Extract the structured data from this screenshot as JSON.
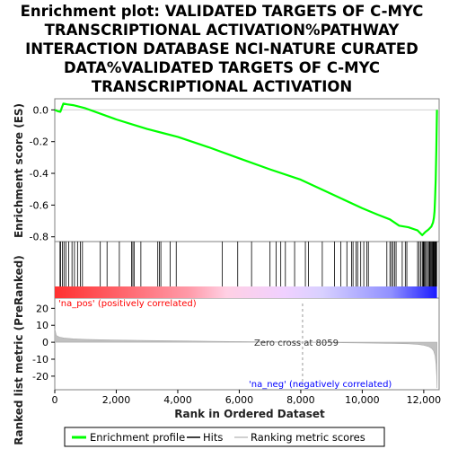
{
  "chart_data": {
    "type": "line",
    "title_lines": [
      "Enrichment plot: VALIDATED TARGETS OF C-MYC",
      "TRANSCRIPTIONAL ACTIVATION%PATHWAY",
      "INTERACTION DATABASE NCI-NATURE CURATED",
      "DATA%VALIDATED TARGETS OF C-MYC",
      "TRANSCRIPTIONAL ACTIVATION"
    ],
    "ylabel_top": "Enrichment score (ES)",
    "ylabel_bottom": "Ranked list metric (PreRanked)",
    "xlabel": "Rank in Ordered Dataset",
    "xlim": [
      0,
      12500
    ],
    "es_ylim": [
      -0.83,
      0.07
    ],
    "metric_ylim": [
      -28,
      26
    ],
    "x_ticks": [
      0,
      2000,
      4000,
      6000,
      8000,
      10000,
      12000
    ],
    "x_tick_labels": [
      "0",
      "2,000",
      "4,000",
      "6,000",
      "8,000",
      "10,000",
      "12,000"
    ],
    "es_ticks": [
      0.0,
      -0.2,
      -0.4,
      -0.6,
      -0.8
    ],
    "es_tick_labels": [
      "0.0",
      "-0.2",
      "-0.4",
      "-0.6",
      "-0.8"
    ],
    "metric_ticks": [
      20,
      10,
      0,
      -10,
      -20
    ],
    "metric_tick_labels": [
      "20",
      "10",
      "0",
      "-10",
      "-20"
    ],
    "enrichment_profile": {
      "x": [
        0,
        60,
        120,
        180,
        230,
        280,
        400,
        600,
        800,
        1000,
        1500,
        2000,
        2500,
        3000,
        3500,
        4000,
        5000,
        6000,
        7000,
        8000,
        9000,
        10000,
        10500,
        10900,
        11200,
        11500,
        11800,
        11950,
        12050,
        12150,
        12250,
        12300,
        12330,
        12350,
        12370,
        12390,
        12410,
        12430
      ],
      "y": [
        0.0,
        -0.005,
        -0.01,
        -0.012,
        0.015,
        0.04,
        0.035,
        0.03,
        0.02,
        0.01,
        -0.025,
        -0.06,
        -0.09,
        -0.12,
        -0.145,
        -0.17,
        -0.235,
        -0.305,
        -0.375,
        -0.44,
        -0.53,
        -0.62,
        -0.66,
        -0.69,
        -0.73,
        -0.74,
        -0.76,
        -0.79,
        -0.77,
        -0.755,
        -0.735,
        -0.71,
        -0.68,
        -0.64,
        -0.56,
        -0.44,
        -0.25,
        0.0
      ]
    },
    "hits": [
      170,
      190,
      250,
      300,
      360,
      450,
      560,
      640,
      740,
      830,
      900,
      1480,
      1700,
      2100,
      2500,
      2540,
      2580,
      2800,
      3350,
      3400,
      3450,
      3750,
      3950,
      5450,
      5950,
      6400,
      7000,
      7200,
      7350,
      7500,
      7800,
      8150,
      8250,
      8700,
      9100,
      9300,
      9500,
      9650,
      9700,
      9800,
      9850,
      9950,
      10050,
      10150,
      10200,
      10800,
      10900,
      10950,
      11000,
      11050,
      11100,
      11300,
      11400,
      11450,
      11800,
      11850,
      11900,
      11950,
      11980,
      12000,
      12030,
      12060,
      12100,
      12150,
      12180,
      12200,
      12220,
      12250,
      12280,
      12300,
      12320,
      12340,
      12360,
      12380,
      12400,
      12420
    ],
    "ranking_metric": {
      "x": [
        0,
        50,
        150,
        300,
        600,
        1000,
        2000,
        3000,
        4000,
        5000,
        6000,
        7000,
        8059,
        9000,
        10000,
        11000,
        11500,
        11800,
        12000,
        12150,
        12250,
        12320,
        12370,
        12400,
        12420,
        12430
      ],
      "y": [
        8,
        4,
        3,
        2.5,
        2,
        1.7,
        1.3,
        1.0,
        0.8,
        0.6,
        0.4,
        0.2,
        0.0,
        -0.2,
        -0.4,
        -0.7,
        -0.9,
        -1.2,
        -1.8,
        -2.5,
        -3.5,
        -5,
        -8,
        -13,
        -20,
        -27
      ]
    },
    "zero_cross": 8059,
    "annotations": {
      "pos": "'na_pos' (positively correlated)",
      "neg": "'na_neg' (negatively correlated)",
      "zero": "Zero cross at 8059"
    },
    "legend": [
      {
        "label": "Enrichment profile",
        "color": "#00ff00"
      },
      {
        "label": "Hits",
        "color": "#000000"
      },
      {
        "label": "Ranking metric scores",
        "color": "#c0c0c0"
      }
    ],
    "colors": {
      "profile": "#00ff00",
      "pos_label": "#ff0000",
      "neg_label": "#0000ff",
      "metric_fill": "#c0c0c0",
      "frame": "#808080"
    }
  }
}
